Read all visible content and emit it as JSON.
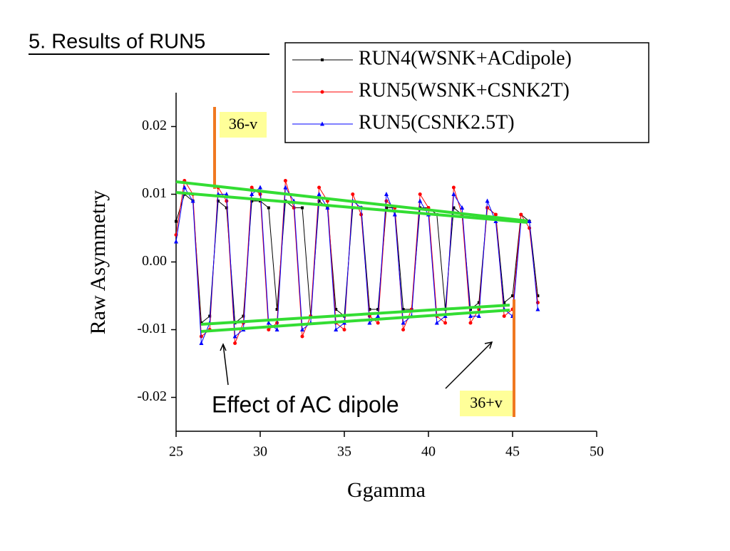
{
  "chart_data": {
    "type": "line",
    "title": "5. Results of RUN5",
    "xlabel": "Ggamma",
    "ylabel": "Raw Asymmetry",
    "annotations": [
      "36-v",
      "36+v",
      "Effect of AC dipole"
    ],
    "xlim": [
      25,
      50
    ],
    "xticks": [
      25,
      30,
      35,
      40,
      45,
      50
    ],
    "ylim": [
      -0.025,
      0.025
    ],
    "yticks": [
      0.02,
      0.01,
      {
        "value": 0,
        "label": "0.00"
      },
      -0.01,
      -0.02
    ],
    "x": [
      25.0,
      25.5,
      26.0,
      26.5,
      27.0,
      27.5,
      28.0,
      28.5,
      29.0,
      29.5,
      30.0,
      30.5,
      31.0,
      31.5,
      32.0,
      32.5,
      33.0,
      33.5,
      34.0,
      34.5,
      35.0,
      35.5,
      36.0,
      36.5,
      37.0,
      37.5,
      38.0,
      38.5,
      39.0,
      39.5,
      40.0,
      40.5,
      41.0,
      41.5,
      42.0,
      42.5,
      43.0,
      43.5,
      44.0,
      44.5,
      45.0,
      45.5,
      46.0,
      46.5
    ],
    "series": [
      {
        "name": "RUN4(WSNK+ACdipole)",
        "color": "#000000",
        "marker": "square",
        "values": [
          0.006,
          0.01,
          0.009,
          -0.009,
          -0.008,
          0.009,
          0.008,
          -0.009,
          -0.008,
          0.009,
          0.009,
          0.008,
          -0.007,
          0.009,
          0.008,
          0.008,
          -0.008,
          0.009,
          0.008,
          -0.007,
          -0.008,
          0.008,
          0.008,
          -0.007,
          -0.007,
          0.008,
          0.008,
          -0.007,
          -0.007,
          0.008,
          0.008,
          0.007,
          -0.007,
          0.008,
          0.007,
          -0.007,
          -0.006,
          0.008,
          0.007,
          -0.006,
          -0.005,
          0.007,
          0.006,
          -0.005
        ]
      },
      {
        "name": "RUN5(WSNK+CSNK2T)",
        "color": "#ff0000",
        "marker": "circle",
        "values": [
          0.004,
          0.012,
          0.01,
          -0.011,
          -0.01,
          0.011,
          0.009,
          -0.012,
          -0.009,
          0.011,
          0.01,
          -0.01,
          -0.009,
          0.012,
          0.008,
          -0.011,
          -0.008,
          0.011,
          0.009,
          -0.009,
          -0.01,
          0.01,
          0.007,
          -0.008,
          -0.009,
          0.009,
          0.008,
          -0.01,
          -0.007,
          0.01,
          0.008,
          -0.008,
          -0.009,
          0.011,
          0.007,
          -0.009,
          -0.007,
          0.008,
          0.007,
          -0.008,
          -0.007,
          0.007,
          0.005,
          -0.006
        ]
      },
      {
        "name": "RUN5(CSNK2.5T)",
        "color": "#0000ff",
        "marker": "triangle",
        "values": [
          0.003,
          0.011,
          0.009,
          -0.012,
          -0.009,
          0.01,
          0.01,
          -0.011,
          -0.01,
          0.01,
          0.011,
          -0.009,
          -0.01,
          0.011,
          0.009,
          -0.01,
          -0.009,
          0.01,
          0.008,
          -0.01,
          -0.009,
          0.009,
          0.008,
          -0.009,
          -0.008,
          0.01,
          0.007,
          -0.009,
          -0.008,
          0.009,
          0.007,
          -0.009,
          -0.008,
          0.01,
          0.008,
          -0.008,
          -0.008,
          0.009,
          0.006,
          -0.007,
          -0.008,
          0.006,
          0.006,
          -0.007
        ]
      }
    ]
  }
}
